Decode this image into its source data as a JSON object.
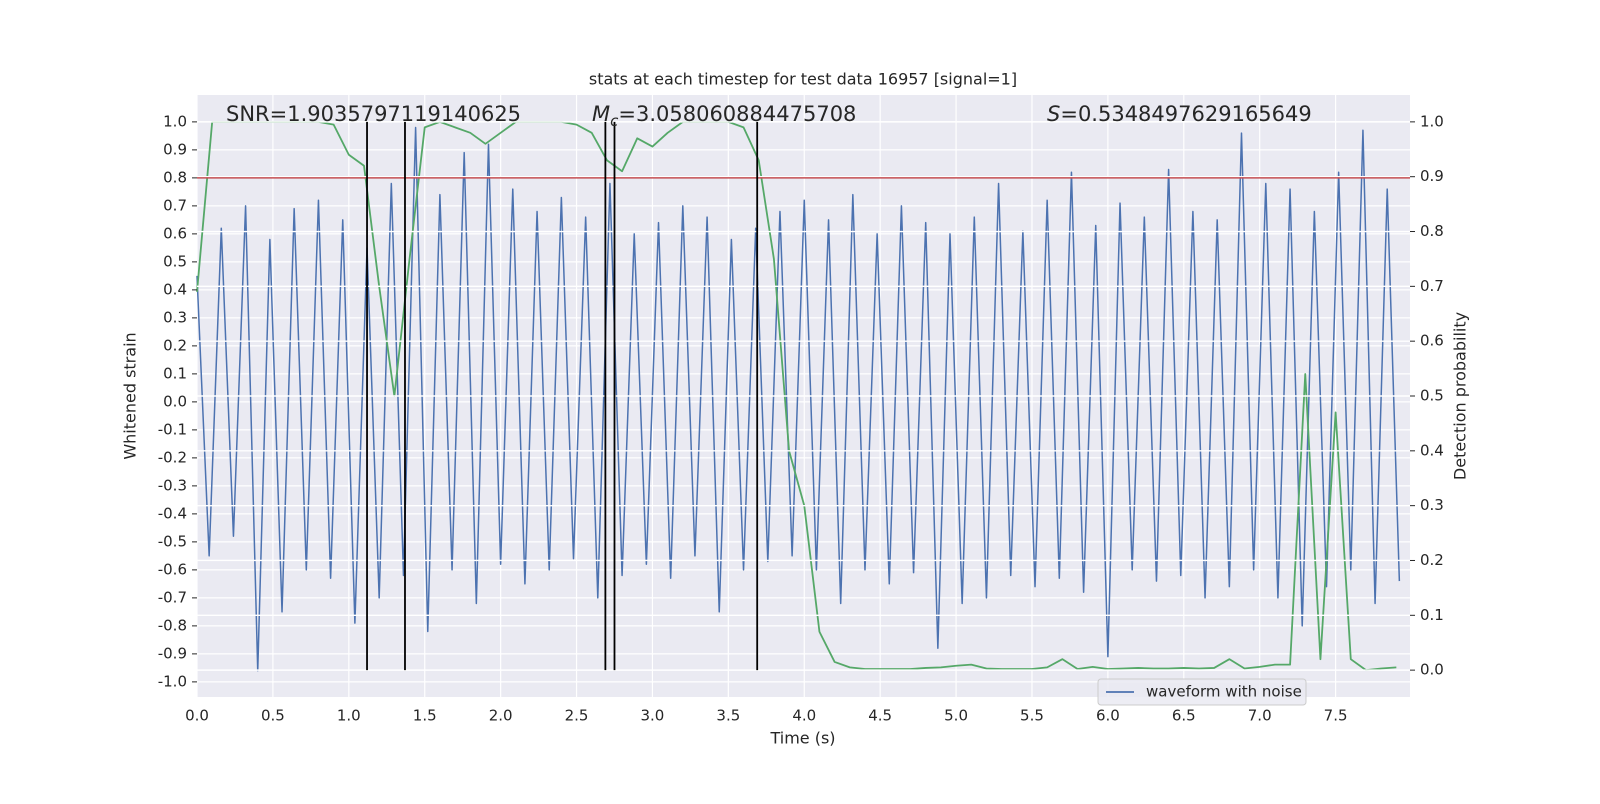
{
  "chart_data": {
    "type": "line",
    "title": "stats at each timestep for test data 16957 [signal=1]",
    "xlabel": "Time (s)",
    "ylabel": "Whitened strain",
    "y2label": "Detection probability",
    "annotations": [
      {
        "text": "SNR=1.9035797119140625"
      },
      {
        "symbol": "M",
        "subscript": "c",
        "text": "=3.058060884475708"
      },
      {
        "symbol": "S",
        "text": "=0.5348497629165649"
      }
    ],
    "xlim": [
      0,
      7.99
    ],
    "ylim": [
      -1.054,
      1.096
    ],
    "y2lim": [
      -0.049,
      1.049
    ],
    "xticks": [
      {
        "value": 0,
        "label": "0.0"
      },
      0.5,
      {
        "value": 1,
        "label": "1.0"
      },
      1.5,
      {
        "value": 2,
        "label": "2.0"
      },
      2.5,
      {
        "value": 3,
        "label": "3.0"
      },
      3.5,
      {
        "value": 4,
        "label": "4.0"
      },
      4.5,
      {
        "value": 5,
        "label": "5.0"
      },
      5.5,
      {
        "value": 6,
        "label": "6.0"
      },
      6.5,
      {
        "value": 7,
        "label": "7.0"
      },
      7.5
    ],
    "yticks": [
      {
        "value": -1,
        "label": "-1.0"
      },
      -0.9,
      -0.8,
      -0.7,
      -0.6,
      -0.5,
      -0.4,
      -0.3,
      -0.2,
      -0.1,
      {
        "value": 0,
        "label": "0.0"
      },
      0.1,
      0.2,
      0.3,
      0.4,
      0.5,
      0.6,
      0.7,
      0.8,
      0.9,
      {
        "value": 1,
        "label": "1.0"
      }
    ],
    "y2ticks": [
      {
        "value": 0,
        "label": "0.0"
      },
      0.1,
      0.2,
      0.3,
      0.4,
      0.5,
      0.6,
      0.7,
      0.8,
      0.9,
      {
        "value": 1,
        "label": "1.0"
      }
    ],
    "grid": true,
    "legend": "lower right",
    "series": [
      {
        "name": "waveform with noise",
        "color": "#4c72b0",
        "x": [
          0,
          0.08,
          0.16,
          0.24,
          0.32,
          0.4,
          0.48,
          0.56,
          0.64,
          0.72,
          0.8,
          0.88,
          0.96,
          1.04,
          1.12,
          1.2,
          1.28,
          1.36,
          1.44,
          1.52,
          1.6,
          1.68,
          1.76,
          1.84,
          1.92,
          2,
          2.08,
          2.16,
          2.24,
          2.32,
          2.4,
          2.48,
          2.56,
          2.64,
          2.72,
          2.8,
          2.88,
          2.96,
          3.04,
          3.12,
          3.2,
          3.28,
          3.36,
          3.44,
          3.52,
          3.6,
          3.68,
          3.76,
          3.84,
          3.92,
          4,
          4.08,
          4.16,
          4.24,
          4.32,
          4.4,
          4.48,
          4.56,
          4.64,
          4.72,
          4.8,
          4.88,
          4.96,
          5.04,
          5.12,
          5.2,
          5.28,
          5.36,
          5.44,
          5.52,
          5.6,
          5.68,
          5.76,
          5.84,
          5.92,
          6,
          6.08,
          6.16,
          6.24,
          6.32,
          6.4,
          6.48,
          6.56,
          6.64,
          6.72,
          6.8,
          6.88,
          6.96,
          7.04,
          7.12,
          7.2,
          7.28,
          7.36,
          7.44,
          7.52,
          7.6,
          7.68,
          7.76,
          7.84,
          7.92
        ],
        "values": [
          0.45,
          -0.55,
          0.62,
          -0.48,
          0.7,
          -0.96,
          0.58,
          -0.75,
          0.69,
          -0.6,
          0.72,
          -0.63,
          0.65,
          -0.79,
          0.55,
          -0.7,
          0.78,
          -0.62,
          0.98,
          -0.82,
          0.74,
          -0.6,
          0.89,
          -0.72,
          0.92,
          -0.58,
          0.76,
          -0.65,
          0.68,
          -0.6,
          0.73,
          -0.56,
          0.66,
          -0.7,
          0.78,
          -0.62,
          0.6,
          -0.58,
          0.64,
          -0.63,
          0.7,
          -0.55,
          0.66,
          -0.75,
          0.58,
          -0.6,
          0.62,
          -0.57,
          0.68,
          -0.55,
          0.72,
          -0.6,
          0.65,
          -0.72,
          0.74,
          -0.6,
          0.6,
          -0.65,
          0.7,
          -0.61,
          0.64,
          -0.88,
          0.6,
          -0.72,
          0.66,
          -0.7,
          0.78,
          -0.62,
          0.61,
          -0.66,
          0.72,
          -0.63,
          0.82,
          -0.68,
          0.63,
          -0.91,
          0.71,
          -0.6,
          0.66,
          -0.64,
          0.83,
          -0.62,
          0.68,
          -0.7,
          0.65,
          -0.66,
          0.96,
          -0.6,
          0.78,
          -0.7,
          0.76,
          -0.8,
          0.68,
          -0.66,
          0.82,
          -0.6,
          0.97,
          -0.72,
          0.76,
          -0.64
        ]
      },
      {
        "color": "#55a868",
        "axis": "y2",
        "x": [
          0,
          0.1,
          0.2,
          0.3,
          0.4,
          0.5,
          0.6,
          0.7,
          0.8,
          0.9,
          1,
          1.1,
          1.2,
          1.3,
          1.4,
          1.5,
          1.6,
          1.7,
          1.8,
          1.9,
          2,
          2.1,
          2.2,
          2.3,
          2.4,
          2.5,
          2.6,
          2.7,
          2.8,
          2.9,
          3,
          3.1,
          3.2,
          3.3,
          3.4,
          3.5,
          3.6,
          3.7,
          3.8,
          3.9,
          4,
          4.1,
          4.2,
          4.3,
          4.4,
          4.5,
          4.6,
          4.7,
          4.8,
          4.9,
          5,
          5.1,
          5.2,
          5.3,
          5.4,
          5.5,
          5.6,
          5.7,
          5.8,
          5.9,
          6,
          6.1,
          6.2,
          6.3,
          6.4,
          6.5,
          6.6,
          6.7,
          6.8,
          6.9,
          7,
          7.1,
          7.2,
          7.3,
          7.4,
          7.5,
          7.6,
          7.7,
          7.8,
          7.9
        ],
        "values": [
          0.69,
          1.0,
          1.0,
          1.0,
          1.0,
          1.0,
          1.0,
          1.0,
          1.0,
          0.995,
          0.94,
          0.92,
          0.7,
          0.5,
          0.75,
          0.99,
          1.0,
          0.99,
          0.98,
          0.96,
          0.98,
          1.0,
          1.0,
          1.0,
          1.0,
          0.995,
          0.98,
          0.93,
          0.91,
          0.97,
          0.955,
          0.98,
          1.0,
          1.0,
          1.0,
          1.0,
          0.99,
          0.93,
          0.75,
          0.4,
          0.3,
          0.07,
          0.015,
          0.005,
          0.002,
          0.002,
          0.002,
          0.002,
          0.004,
          0.005,
          0.008,
          0.01,
          0.003,
          0.002,
          0.002,
          0.002,
          0.005,
          0.02,
          0.002,
          0.006,
          0.002,
          0.003,
          0.004,
          0.003,
          0.003,
          0.004,
          0.003,
          0.004,
          0.02,
          0.003,
          0.006,
          0.01,
          0.01,
          0.54,
          0.02,
          0.47,
          0.02,
          0.0,
          0.003,
          0.005
        ]
      }
    ],
    "hline": {
      "value": 0.8,
      "color": "#c44e52"
    },
    "vlines": {
      "x": [
        1.12,
        1.37,
        2.69,
        2.75,
        3.69
      ],
      "ymin": 0,
      "ymax": 1,
      "color": "#000000"
    }
  }
}
